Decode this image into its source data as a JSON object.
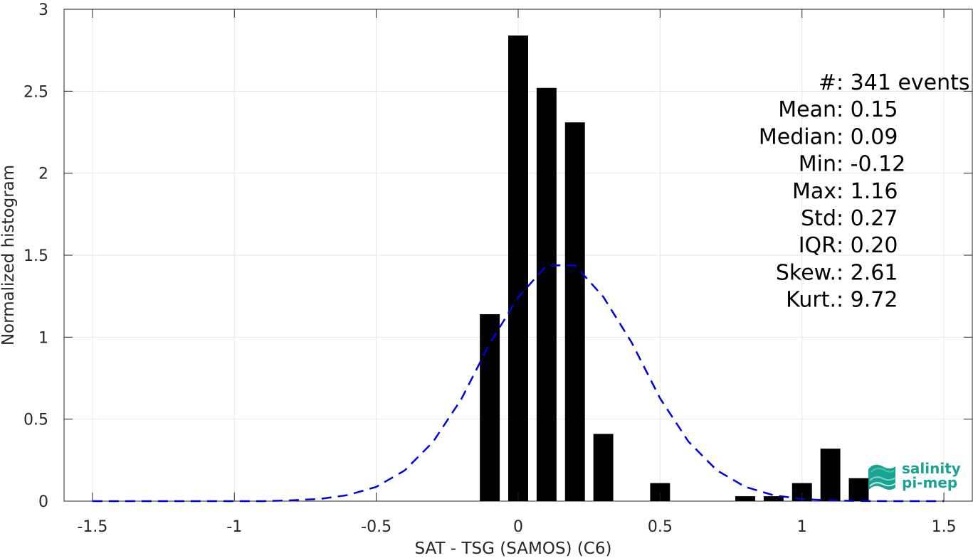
{
  "chart_data": {
    "type": "bar",
    "xlabel": "SAT - TSG (SAMOS) (C6)",
    "ylabel": "Normalized histogram",
    "xlim": [
      -1.6,
      1.6
    ],
    "ylim": [
      0,
      3
    ],
    "xticks": [
      -1.5,
      -1,
      -0.5,
      0,
      0.5,
      1,
      1.5
    ],
    "xtick_labels": [
      "-1.5",
      "-1",
      "-0.5",
      "0",
      "0.5",
      "1",
      "1.5"
    ],
    "yticks": [
      0,
      0.5,
      1,
      1.5,
      2,
      2.5,
      3
    ],
    "ytick_labels": [
      "0",
      "0.5",
      "1",
      "1.5",
      "2",
      "2.5",
      "3"
    ],
    "grid": true,
    "bar_width": 0.07,
    "bars": {
      "x": [
        -0.1,
        0.0,
        0.1,
        0.2,
        0.3,
        0.5,
        0.8,
        0.9,
        1.0,
        1.1,
        1.2
      ],
      "values": [
        1.14,
        2.84,
        2.52,
        2.31,
        0.41,
        0.11,
        0.03,
        0.03,
        0.11,
        0.32,
        0.14
      ],
      "color": "#000000"
    },
    "fit_curve": {
      "style": "dashed",
      "color": "#0000dd",
      "x": [
        -1.5,
        -1.4,
        -1.3,
        -1.2,
        -1.1,
        -1.0,
        -0.9,
        -0.8,
        -0.7,
        -0.6,
        -0.5,
        -0.4,
        -0.3,
        -0.2,
        -0.1,
        0.0,
        0.1,
        0.2,
        0.3,
        0.4,
        0.5,
        0.6,
        0.7,
        0.8,
        0.9,
        1.0,
        1.1,
        1.2,
        1.3,
        1.4,
        1.5
      ],
      "y": [
        0,
        0,
        0,
        0,
        0,
        0,
        0,
        0.005,
        0.013,
        0.037,
        0.087,
        0.187,
        0.361,
        0.623,
        0.962,
        1.243,
        1.437,
        1.439,
        1.246,
        0.967,
        0.627,
        0.363,
        0.188,
        0.087,
        0.036,
        0.013,
        0.004,
        0.001,
        0,
        0,
        0
      ]
    },
    "stats_lines": [
      "#  : 341 events",
      "Mean : 0.15",
      "Median : 0.09",
      "Min : -0.12",
      "Max : 1.16",
      "Std : 0.27",
      "IQR : 0.20",
      "Skew. : 2.61",
      "Kurt. : 9.72"
    ]
  },
  "logo": {
    "line1": "salinity",
    "line2": "pi-mep",
    "color": "#1aa391"
  }
}
